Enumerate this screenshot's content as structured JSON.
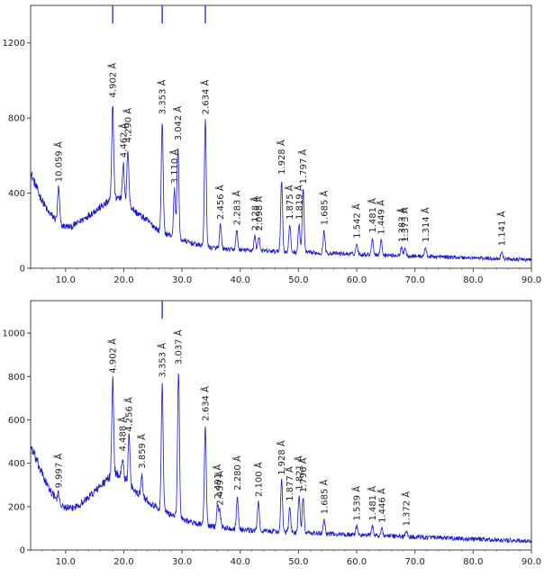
{
  "chart_data": [
    {
      "type": "line",
      "title": "",
      "xlabel": "",
      "ylabel": "",
      "xlim": [
        4,
        90
      ],
      "ylim": [
        0,
        1400
      ],
      "x_ticks": [
        10,
        20,
        30,
        40,
        50,
        60,
        70,
        80,
        90
      ],
      "x_tick_labels": [
        "10.0",
        "20.0",
        "30.0",
        "40.0",
        "50.0",
        "60.0",
        "70.0",
        "80.0",
        "90.0"
      ],
      "y_ticks": [
        0,
        400,
        800,
        1200
      ],
      "y_tick_labels": [
        "0",
        "400",
        "800",
        "1200"
      ],
      "grid": false,
      "line_color": "#1a1acc",
      "marker_color": "#3b4fd0",
      "markers": [
        18.1,
        26.6,
        34.0
      ],
      "series": [
        {
          "x": [
            4.0,
            5.5,
            7.0,
            8.5,
            9.5,
            11.0,
            13.0,
            15.0,
            17.0,
            18.0,
            19.0,
            20.0,
            21.0,
            22.0,
            24.0,
            26.0,
            28.0,
            30.0,
            32.0,
            35.0,
            38.0,
            42.0,
            46.0,
            50.0,
            55.0,
            60.0,
            65.0,
            70.0,
            75.0,
            80.0,
            85.0,
            90.0
          ],
          "y": [
            510,
            390,
            300,
            255,
            225,
            220,
            260,
            305,
            345,
            370,
            380,
            360,
            340,
            300,
            255,
            200,
            175,
            150,
            130,
            110,
            100,
            95,
            90,
            85,
            80,
            75,
            70,
            65,
            60,
            55,
            50,
            45
          ]
        }
      ],
      "peaks": [
        {
          "x": 8.8,
          "y": 430,
          "label": "10.059 Å"
        },
        {
          "x": 18.1,
          "y": 880,
          "label": "4.902 Å"
        },
        {
          "x": 19.9,
          "y": 560,
          "label": "4.462 Å"
        },
        {
          "x": 20.7,
          "y": 640,
          "label": "4.290 Å"
        },
        {
          "x": 26.6,
          "y": 790,
          "label": "3.353 Å"
        },
        {
          "x": 28.7,
          "y": 420,
          "label": "3.110 Å"
        },
        {
          "x": 29.3,
          "y": 650,
          "label": "3.042 Å"
        },
        {
          "x": 34.0,
          "y": 790,
          "label": "2.634 Å"
        },
        {
          "x": 36.6,
          "y": 230,
          "label": "2.456 Å"
        },
        {
          "x": 39.4,
          "y": 200,
          "label": "2.283 Å"
        },
        {
          "x": 42.5,
          "y": 170,
          "label": "2.128 Å"
        },
        {
          "x": 43.2,
          "y": 170,
          "label": "2.098 Å"
        },
        {
          "x": 47.1,
          "y": 470,
          "label": "1.928 Å"
        },
        {
          "x": 48.5,
          "y": 230,
          "label": "1.875 Å"
        },
        {
          "x": 50.1,
          "y": 230,
          "label": "1.819 Å"
        },
        {
          "x": 50.8,
          "y": 420,
          "label": "1.797 Å"
        },
        {
          "x": 54.4,
          "y": 200,
          "label": "1.685 Å"
        },
        {
          "x": 60.0,
          "y": 130,
          "label": "1.542 Å"
        },
        {
          "x": 62.7,
          "y": 160,
          "label": "1.481 Å"
        },
        {
          "x": 64.2,
          "y": 150,
          "label": "1.449 Å"
        },
        {
          "x": 67.7,
          "y": 110,
          "label": "1.383 Å"
        },
        {
          "x": 68.3,
          "y": 110,
          "label": "1.373 Å"
        },
        {
          "x": 71.8,
          "y": 110,
          "label": "1.314 Å"
        },
        {
          "x": 84.9,
          "y": 90,
          "label": "1.141 Å"
        }
      ]
    },
    {
      "type": "line",
      "title": "",
      "xlabel": "",
      "ylabel": "",
      "xlim": [
        4,
        90
      ],
      "ylim": [
        0,
        1150
      ],
      "x_ticks": [
        10,
        20,
        30,
        40,
        50,
        60,
        70,
        80,
        90
      ],
      "x_tick_labels": [
        "10.0",
        "20.0",
        "30.0",
        "40.0",
        "50.0",
        "60.0",
        "70.0",
        "80.0",
        "90.0"
      ],
      "y_ticks": [
        0,
        200,
        400,
        600,
        800,
        1000
      ],
      "y_tick_labels": [
        "0",
        "200",
        "400",
        "600",
        "800",
        "1000"
      ],
      "grid": false,
      "line_color": "#1a1acc",
      "marker_color": "#3b4fd0",
      "markers": [
        26.6
      ],
      "series": [
        {
          "x": [
            4.0,
            5.5,
            7.0,
            8.5,
            9.5,
            11.0,
            13.0,
            15.0,
            17.0,
            18.0,
            19.0,
            20.0,
            21.0,
            22.0,
            24.0,
            26.0,
            28.0,
            30.0,
            32.0,
            35.0,
            38.0,
            42.0,
            46.0,
            50.0,
            55.0,
            60.0,
            65.0,
            70.0,
            75.0,
            80.0,
            85.0,
            90.0
          ],
          "y": [
            480,
            380,
            290,
            230,
            200,
            190,
            220,
            270,
            320,
            345,
            350,
            330,
            300,
            270,
            230,
            190,
            165,
            145,
            125,
            110,
            100,
            90,
            85,
            80,
            75,
            70,
            65,
            60,
            55,
            50,
            45,
            40
          ]
        }
      ],
      "peaks": [
        {
          "x": 8.8,
          "y": 260,
          "label": "9.997 Å"
        },
        {
          "x": 18.1,
          "y": 790,
          "label": "4.902 Å"
        },
        {
          "x": 19.8,
          "y": 430,
          "label": "4.488 Å"
        },
        {
          "x": 20.9,
          "y": 520,
          "label": "4.256 Å"
        },
        {
          "x": 23.1,
          "y": 350,
          "label": "3.859 Å"
        },
        {
          "x": 26.6,
          "y": 770,
          "label": "3.353 Å"
        },
        {
          "x": 29.4,
          "y": 830,
          "label": "3.037 Å"
        },
        {
          "x": 34.0,
          "y": 570,
          "label": "2.634 Å"
        },
        {
          "x": 36.1,
          "y": 210,
          "label": "2.491 Å"
        },
        {
          "x": 36.5,
          "y": 180,
          "label": "2.459 Å"
        },
        {
          "x": 39.5,
          "y": 250,
          "label": "2.280 Å"
        },
        {
          "x": 43.1,
          "y": 220,
          "label": "2.100 Å"
        },
        {
          "x": 47.1,
          "y": 320,
          "label": "1.928 Å"
        },
        {
          "x": 48.5,
          "y": 200,
          "label": "1.877 Å"
        },
        {
          "x": 50.1,
          "y": 250,
          "label": "1.821 Å"
        },
        {
          "x": 50.8,
          "y": 240,
          "label": "1.796 Å"
        },
        {
          "x": 54.4,
          "y": 140,
          "label": "1.685 Å"
        },
        {
          "x": 60.0,
          "y": 110,
          "label": "1.539 Å"
        },
        {
          "x": 62.7,
          "y": 110,
          "label": "1.481 Å"
        },
        {
          "x": 64.3,
          "y": 100,
          "label": "1.446 Å"
        },
        {
          "x": 68.5,
          "y": 85,
          "label": "1.372 Å"
        }
      ]
    }
  ]
}
